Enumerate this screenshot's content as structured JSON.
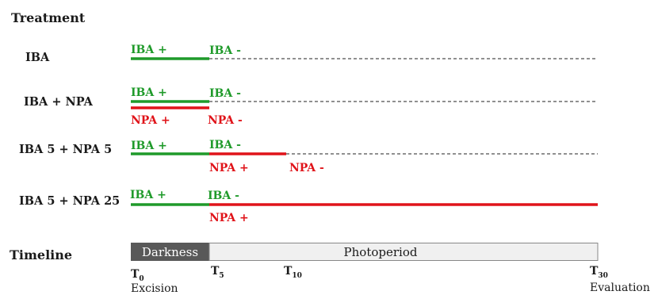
{
  "header": {
    "treatment": "Treatment",
    "timeline": "Timeline"
  },
  "rows": [
    {
      "label": "IBA",
      "iba_on": "IBA +",
      "iba_off": "IBA -"
    },
    {
      "label": "IBA + NPA",
      "iba_on": "IBA +",
      "iba_off": "IBA -",
      "npa_on": "NPA +",
      "npa_off": "NPA -"
    },
    {
      "label": "IBA 5 + NPA 5",
      "iba_on": "IBA +",
      "iba_off": "IBA -",
      "npa_on": "NPA +",
      "npa_off": "NPA -"
    },
    {
      "label": "IBA 5 + NPA 25",
      "iba_on": "IBA +",
      "iba_off": "IBA -",
      "npa_on": "NPA +"
    }
  ],
  "timeline": {
    "darkness": "Darkness",
    "photoperiod": "Photoperiod",
    "ticks": [
      {
        "T": "T",
        "sub": "0",
        "note": "Excision"
      },
      {
        "T": "T",
        "sub": "5"
      },
      {
        "T": "T",
        "sub": "10"
      },
      {
        "T": "T",
        "sub": "30",
        "note": "Evaluation"
      }
    ]
  },
  "colors": {
    "iba": "#1f9a2a",
    "npa": "#e0141a",
    "darkness": "#595959",
    "photoperiod": "#f0f0f0"
  }
}
